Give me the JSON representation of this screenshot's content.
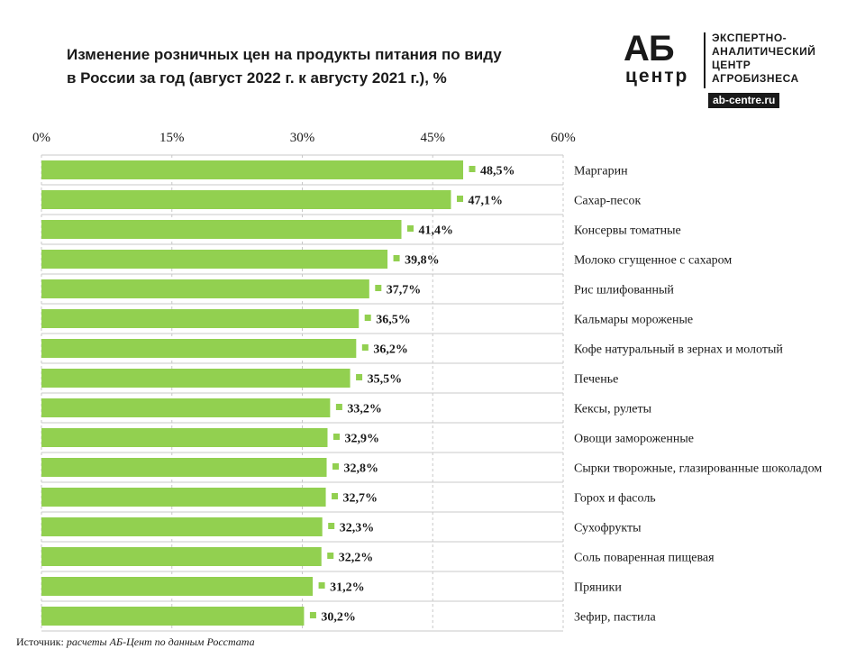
{
  "title": {
    "line1": "Изменение розничных цен на продукты питания по виду",
    "line2": "в России за год (август 2022 г. к августу 2021 г.), %"
  },
  "logo": {
    "ab": "АБ",
    "centr": "центр",
    "line1": "ЭКСПЕРТНО-",
    "line2": "АНАЛИТИЧЕСКИЙ",
    "line3": "ЦЕНТР",
    "line4": "АГРОБИЗНЕСА",
    "site": "ab-centre.ru"
  },
  "source": {
    "label": "Источник:",
    "text": "расчеты АБ-Цент по данным Росстата"
  },
  "colors": {
    "bar": "#92d050",
    "text": "#1a1a1a",
    "grid": "#c8c8c8"
  },
  "chart_data": {
    "type": "bar",
    "orientation": "horizontal",
    "x_tick_labels": [
      "0%",
      "15%",
      "30%",
      "45%",
      "60%"
    ],
    "x_ticks": [
      0,
      15,
      30,
      45,
      60
    ],
    "xlim": [
      0,
      60
    ],
    "grid": true,
    "categories": [
      "Маргарин",
      "Сахар-песок",
      "Консервы томатные",
      "Молоко сгущенное с сахаром",
      "Рис шлифованный",
      "Кальмары мороженые",
      "Кофе натуральный в зернах и молотый",
      "Печенье",
      "Кексы, рулеты",
      "Овощи замороженные",
      "Сырки творожные, глазированные шоколадом",
      "Горох и фасоль",
      "Сухофрукты",
      "Соль поваренная пищевая",
      "Пряники",
      "Зефир, пастила"
    ],
    "values": [
      48.5,
      47.1,
      41.4,
      39.8,
      37.7,
      36.5,
      36.2,
      35.5,
      33.2,
      32.9,
      32.8,
      32.7,
      32.3,
      32.2,
      31.2,
      30.2
    ],
    "value_labels": [
      "48,5%",
      "47,1%",
      "41,4%",
      "39,8%",
      "37,7%",
      "36,5%",
      "36,2%",
      "35,5%",
      "33,2%",
      "32,9%",
      "32,8%",
      "32,7%",
      "32,3%",
      "32,2%",
      "31,2%",
      "30,2%"
    ]
  }
}
